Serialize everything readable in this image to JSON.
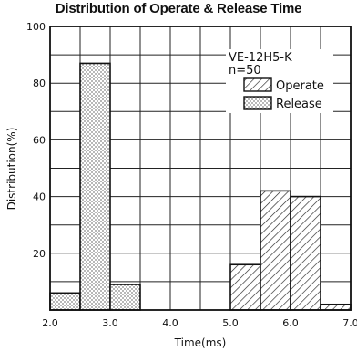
{
  "chart_data": {
    "type": "bar",
    "title": "Distribution of Operate & Release Time",
    "xlabel": "Time(ms)",
    "ylabel": "Distribution(%)",
    "xlim": [
      2.0,
      7.0
    ],
    "ylim": [
      0,
      100
    ],
    "bin_width": 0.5,
    "x_ticks": [
      "2.0",
      "3.0",
      "4.0",
      "5.0",
      "6.0",
      "7.0"
    ],
    "y_ticks": [
      "20",
      "40",
      "60",
      "80",
      "100"
    ],
    "grid": true,
    "legend_position": "top-right",
    "annotations": [
      "VE-12H5-K",
      "n=50"
    ],
    "series": [
      {
        "name": "Operate",
        "pattern": "hatched",
        "bins": [
          {
            "x": 5.0,
            "value": 16
          },
          {
            "x": 5.5,
            "value": 42
          },
          {
            "x": 6.0,
            "value": 40
          },
          {
            "x": 6.5,
            "value": 2
          }
        ]
      },
      {
        "name": "Release",
        "pattern": "dotted",
        "bins": [
          {
            "x": 2.0,
            "value": 6
          },
          {
            "x": 2.5,
            "value": 87
          },
          {
            "x": 3.0,
            "value": 9
          }
        ]
      }
    ]
  }
}
